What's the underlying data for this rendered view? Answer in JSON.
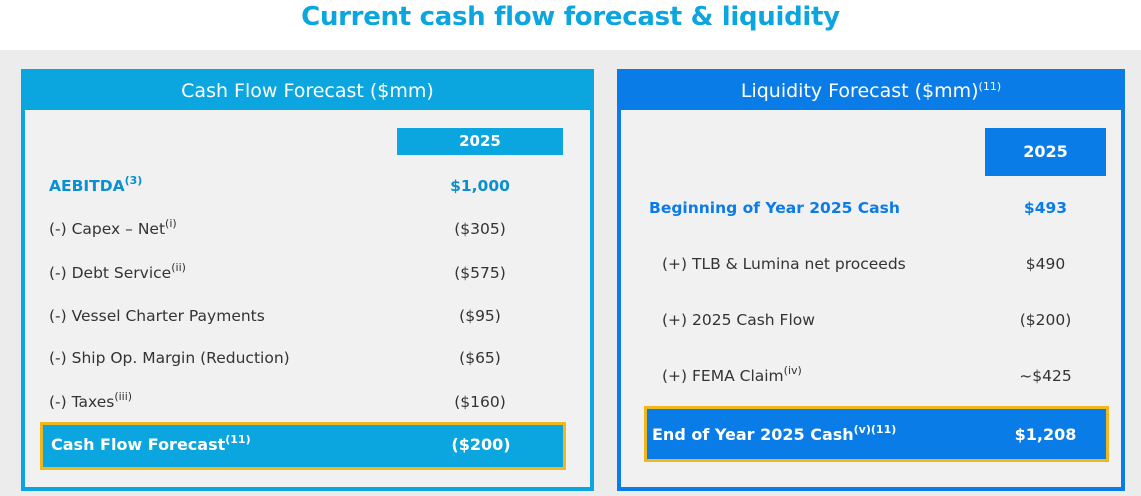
{
  "page": {
    "title": "Current cash flow forecast & liquidity"
  },
  "cash_flow": {
    "header": "Cash Flow Forecast ($mm)",
    "year": "2025",
    "rows": [
      {
        "label": "AEBITDA",
        "note": "(3)",
        "value": "$1,000"
      },
      {
        "label": "(-) Capex – Net",
        "note": "(i)",
        "value": "($305)"
      },
      {
        "label": "(-) Debt Service",
        "note": "(ii)",
        "value": "($575)"
      },
      {
        "label": "(-) Vessel Charter Payments",
        "note": "",
        "value": "($95)"
      },
      {
        "label": "(-) Ship Op. Margin (Reduction)",
        "note": "",
        "value": "($65)"
      },
      {
        "label": "(-) Taxes",
        "note": "(iii)",
        "value": "($160)"
      }
    ],
    "total": {
      "label": "Cash Flow Forecast",
      "note": "(11)",
      "value": "($200)"
    }
  },
  "liquidity": {
    "header": "Liquidity Forecast ($mm)",
    "header_note": "(11)",
    "year": "2025",
    "rows": [
      {
        "label": "Beginning of Year 2025 Cash",
        "note": "",
        "value": "$493"
      },
      {
        "label": "(+) TLB & Lumina net proceeds",
        "note": "",
        "value": "$490"
      },
      {
        "label": "(+) 2025 Cash Flow",
        "note": "",
        "value": "($200)"
      },
      {
        "label": "(+) FEMA Claim",
        "note": "(iv)",
        "value": "~$425"
      }
    ],
    "total": {
      "label": "End of Year 2025 Cash",
      "note": "(v)(11)",
      "value": "$1,208"
    }
  },
  "colors": {
    "cyan": "#0ba6df",
    "blue": "#0a7ce8",
    "highlight_border": "#f0b81c"
  }
}
